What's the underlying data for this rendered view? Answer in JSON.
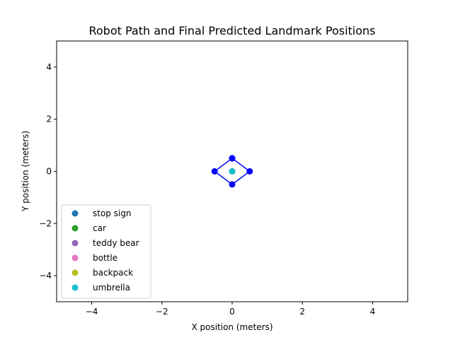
{
  "chart_data": {
    "type": "scatter",
    "title": "Robot Path and Final Predicted Landmark Positions",
    "xlabel": "X position (meters)",
    "ylabel": "Y position (meters)",
    "xlim": [
      -5,
      5
    ],
    "ylim": [
      -5,
      5
    ],
    "xticks": [
      -4,
      -2,
      0,
      2,
      4
    ],
    "yticks": [
      -4,
      -2,
      0,
      2,
      4
    ],
    "xtick_labels": [
      "−4",
      "−2",
      "0",
      "2",
      "4"
    ],
    "ytick_labels": [
      "−4",
      "−2",
      "0",
      "2",
      "4"
    ],
    "grid": false,
    "legend_position": "lower-left",
    "path": {
      "color": "#0000ff",
      "x": [
        0,
        0.5,
        0,
        -0.5,
        0
      ],
      "y": [
        0.5,
        0,
        -0.5,
        0,
        0.5
      ]
    },
    "series": [
      {
        "name": "stop sign",
        "color": "#1f77b4",
        "x": [
          0
        ],
        "y": [
          0
        ]
      },
      {
        "name": "car",
        "color": "#2ca02c",
        "x": [
          0
        ],
        "y": [
          0
        ]
      },
      {
        "name": "teddy bear",
        "color": "#9467bd",
        "x": [
          0
        ],
        "y": [
          0
        ]
      },
      {
        "name": "bottle",
        "color": "#e377c2",
        "x": [
          0
        ],
        "y": [
          0
        ]
      },
      {
        "name": "backpack",
        "color": "#bcbd22",
        "x": [
          0
        ],
        "y": [
          0
        ]
      },
      {
        "name": "umbrella",
        "color": "#17becf",
        "x": [
          0
        ],
        "y": [
          0
        ]
      }
    ]
  }
}
